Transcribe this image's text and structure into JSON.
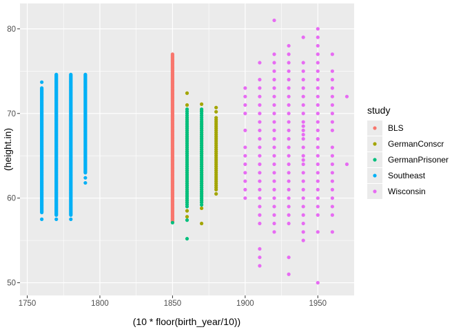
{
  "chart_data": {
    "type": "scatter",
    "xlabel": "(10 * floor(birth_year/10))",
    "ylabel": "(height.in)",
    "xlim": [
      1745,
      1975
    ],
    "ylim": [
      48.5,
      83
    ],
    "x_ticks": [
      1750,
      1800,
      1850,
      1900,
      1950
    ],
    "y_ticks": [
      50,
      60,
      70,
      80
    ],
    "x_tick_labels": [
      "1750",
      "1800",
      "1850",
      "1900",
      "1950"
    ],
    "y_tick_labels": [
      "50",
      "60",
      "70",
      "80"
    ],
    "grid": true,
    "background": "#EBEBEB",
    "legend": {
      "title": "study",
      "position": "right",
      "entries": [
        "BLS",
        "GermanConscr",
        "GermanPrisoner",
        "Southeast",
        "Wisconsin"
      ]
    },
    "series": [
      {
        "name": "BLS",
        "color": "#F8766D",
        "ranges": [
          {
            "x": 1850,
            "min": 57.2,
            "max": 77.0,
            "step": 0.1
          }
        ],
        "points": []
      },
      {
        "name": "GermanConscr",
        "color": "#A3A500",
        "ranges": [
          {
            "x": 1860,
            "min": 59.5,
            "max": 69.5,
            "step": 0.25
          },
          {
            "x": 1870,
            "min": 59.5,
            "max": 69.0,
            "step": 0.25
          },
          {
            "x": 1880,
            "min": 61.0,
            "max": 69.5,
            "step": 0.25
          }
        ],
        "points": [
          {
            "x": 1860,
            "y": 72.4
          },
          {
            "x": 1860,
            "y": 71.0
          },
          {
            "x": 1860,
            "y": 58.5
          },
          {
            "x": 1860,
            "y": 57.8
          },
          {
            "x": 1870,
            "y": 71.1
          },
          {
            "x": 1870,
            "y": 70.3
          },
          {
            "x": 1870,
            "y": 58.8
          },
          {
            "x": 1870,
            "y": 57.0
          },
          {
            "x": 1880,
            "y": 70.7
          },
          {
            "x": 1880,
            "y": 70.2
          },
          {
            "x": 1880,
            "y": 60.5
          }
        ]
      },
      {
        "name": "GermanPrisoner",
        "color": "#00BF7D",
        "ranges": [
          {
            "x": 1860,
            "min": 59.0,
            "max": 70.5,
            "step": 0.25
          },
          {
            "x": 1870,
            "min": 59.5,
            "max": 70.5,
            "step": 0.25
          }
        ],
        "points": [
          {
            "x": 1850,
            "y": 57.1
          },
          {
            "x": 1860,
            "y": 55.2
          },
          {
            "x": 1860,
            "y": 57.4
          },
          {
            "x": 1870,
            "y": 59.2
          }
        ]
      },
      {
        "name": "Southeast",
        "color": "#00B0F6",
        "ranges": [
          {
            "x": 1760,
            "min": 58.3,
            "max": 73.0,
            "step": 0.1
          },
          {
            "x": 1770,
            "min": 58.0,
            "max": 74.6,
            "step": 0.1
          },
          {
            "x": 1780,
            "min": 58.0,
            "max": 74.6,
            "step": 0.1
          },
          {
            "x": 1790,
            "min": 63.0,
            "max": 74.6,
            "step": 0.1
          }
        ],
        "points": [
          {
            "x": 1760,
            "y": 73.7
          },
          {
            "x": 1760,
            "y": 57.5
          },
          {
            "x": 1770,
            "y": 57.5
          },
          {
            "x": 1780,
            "y": 57.5
          },
          {
            "x": 1790,
            "y": 62.4
          },
          {
            "x": 1790,
            "y": 61.8
          }
        ]
      },
      {
        "name": "Wisconsin",
        "color": "#E76BF3",
        "ranges": [],
        "points": [
          {
            "x": 1900,
            "y": 73
          },
          {
            "x": 1900,
            "y": 72
          },
          {
            "x": 1900,
            "y": 71
          },
          {
            "x": 1900,
            "y": 70
          },
          {
            "x": 1900,
            "y": 68
          },
          {
            "x": 1900,
            "y": 66
          },
          {
            "x": 1900,
            "y": 65
          },
          {
            "x": 1900,
            "y": 64
          },
          {
            "x": 1900,
            "y": 63
          },
          {
            "x": 1900,
            "y": 62
          },
          {
            "x": 1900,
            "y": 61
          },
          {
            "x": 1900,
            "y": 60
          },
          {
            "x": 1910,
            "y": 76
          },
          {
            "x": 1910,
            "y": 74
          },
          {
            "x": 1910,
            "y": 73
          },
          {
            "x": 1910,
            "y": 72
          },
          {
            "x": 1910,
            "y": 71
          },
          {
            "x": 1910,
            "y": 70
          },
          {
            "x": 1910,
            "y": 69
          },
          {
            "x": 1910,
            "y": 68
          },
          {
            "x": 1910,
            "y": 67
          },
          {
            "x": 1910,
            "y": 66
          },
          {
            "x": 1910,
            "y": 65
          },
          {
            "x": 1910,
            "y": 64
          },
          {
            "x": 1910,
            "y": 63
          },
          {
            "x": 1910,
            "y": 62
          },
          {
            "x": 1910,
            "y": 61
          },
          {
            "x": 1910,
            "y": 60
          },
          {
            "x": 1910,
            "y": 59
          },
          {
            "x": 1910,
            "y": 58
          },
          {
            "x": 1910,
            "y": 57
          },
          {
            "x": 1910,
            "y": 54
          },
          {
            "x": 1910,
            "y": 53
          },
          {
            "x": 1910,
            "y": 52
          },
          {
            "x": 1920,
            "y": 81
          },
          {
            "x": 1920,
            "y": 77
          },
          {
            "x": 1920,
            "y": 76
          },
          {
            "x": 1920,
            "y": 75
          },
          {
            "x": 1920,
            "y": 74
          },
          {
            "x": 1920,
            "y": 73
          },
          {
            "x": 1920,
            "y": 72
          },
          {
            "x": 1920,
            "y": 71
          },
          {
            "x": 1920,
            "y": 70
          },
          {
            "x": 1920,
            "y": 69
          },
          {
            "x": 1920,
            "y": 68
          },
          {
            "x": 1920,
            "y": 67
          },
          {
            "x": 1920,
            "y": 66
          },
          {
            "x": 1920,
            "y": 65
          },
          {
            "x": 1920,
            "y": 64
          },
          {
            "x": 1920,
            "y": 63
          },
          {
            "x": 1920,
            "y": 62
          },
          {
            "x": 1920,
            "y": 61
          },
          {
            "x": 1920,
            "y": 60
          },
          {
            "x": 1920,
            "y": 59
          },
          {
            "x": 1920,
            "y": 58
          },
          {
            "x": 1920,
            "y": 57
          },
          {
            "x": 1920,
            "y": 56
          },
          {
            "x": 1930,
            "y": 78
          },
          {
            "x": 1930,
            "y": 77
          },
          {
            "x": 1930,
            "y": 76
          },
          {
            "x": 1930,
            "y": 75
          },
          {
            "x": 1930,
            "y": 74
          },
          {
            "x": 1930,
            "y": 73
          },
          {
            "x": 1930,
            "y": 72
          },
          {
            "x": 1930,
            "y": 71
          },
          {
            "x": 1930,
            "y": 70
          },
          {
            "x": 1930,
            "y": 69
          },
          {
            "x": 1930,
            "y": 68
          },
          {
            "x": 1930,
            "y": 67
          },
          {
            "x": 1930,
            "y": 66
          },
          {
            "x": 1930,
            "y": 65
          },
          {
            "x": 1930,
            "y": 64
          },
          {
            "x": 1930,
            "y": 63
          },
          {
            "x": 1930,
            "y": 62
          },
          {
            "x": 1930,
            "y": 61
          },
          {
            "x": 1930,
            "y": 60
          },
          {
            "x": 1930,
            "y": 59
          },
          {
            "x": 1930,
            "y": 58
          },
          {
            "x": 1930,
            "y": 57
          },
          {
            "x": 1930,
            "y": 53
          },
          {
            "x": 1930,
            "y": 51
          },
          {
            "x": 1940,
            "y": 79
          },
          {
            "x": 1940,
            "y": 76
          },
          {
            "x": 1940,
            "y": 75
          },
          {
            "x": 1940,
            "y": 74
          },
          {
            "x": 1940,
            "y": 73
          },
          {
            "x": 1940,
            "y": 72
          },
          {
            "x": 1940,
            "y": 71
          },
          {
            "x": 1940,
            "y": 70
          },
          {
            "x": 1940,
            "y": 69
          },
          {
            "x": 1940,
            "y": 68.5
          },
          {
            "x": 1940,
            "y": 68
          },
          {
            "x": 1940,
            "y": 67.5
          },
          {
            "x": 1940,
            "y": 67
          },
          {
            "x": 1940,
            "y": 66
          },
          {
            "x": 1940,
            "y": 65
          },
          {
            "x": 1940,
            "y": 64.5
          },
          {
            "x": 1940,
            "y": 64
          },
          {
            "x": 1940,
            "y": 63
          },
          {
            "x": 1940,
            "y": 62
          },
          {
            "x": 1940,
            "y": 61
          },
          {
            "x": 1940,
            "y": 60
          },
          {
            "x": 1940,
            "y": 59
          },
          {
            "x": 1940,
            "y": 58
          },
          {
            "x": 1940,
            "y": 57
          },
          {
            "x": 1940,
            "y": 56
          },
          {
            "x": 1940,
            "y": 55
          },
          {
            "x": 1950,
            "y": 80
          },
          {
            "x": 1950,
            "y": 79
          },
          {
            "x": 1950,
            "y": 78
          },
          {
            "x": 1950,
            "y": 77
          },
          {
            "x": 1950,
            "y": 76
          },
          {
            "x": 1950,
            "y": 75
          },
          {
            "x": 1950,
            "y": 74
          },
          {
            "x": 1950,
            "y": 73
          },
          {
            "x": 1950,
            "y": 72
          },
          {
            "x": 1950,
            "y": 71
          },
          {
            "x": 1950,
            "y": 70
          },
          {
            "x": 1950,
            "y": 69
          },
          {
            "x": 1950,
            "y": 68
          },
          {
            "x": 1950,
            "y": 67
          },
          {
            "x": 1950,
            "y": 66
          },
          {
            "x": 1950,
            "y": 65
          },
          {
            "x": 1950,
            "y": 64
          },
          {
            "x": 1950,
            "y": 63
          },
          {
            "x": 1950,
            "y": 62
          },
          {
            "x": 1950,
            "y": 61
          },
          {
            "x": 1950,
            "y": 60
          },
          {
            "x": 1950,
            "y": 59
          },
          {
            "x": 1950,
            "y": 58
          },
          {
            "x": 1950,
            "y": 56
          },
          {
            "x": 1950,
            "y": 50
          },
          {
            "x": 1960,
            "y": 77
          },
          {
            "x": 1960,
            "y": 75
          },
          {
            "x": 1960,
            "y": 74
          },
          {
            "x": 1960,
            "y": 73
          },
          {
            "x": 1960,
            "y": 72
          },
          {
            "x": 1960,
            "y": 71
          },
          {
            "x": 1960,
            "y": 70
          },
          {
            "x": 1960,
            "y": 69
          },
          {
            "x": 1960,
            "y": 68
          },
          {
            "x": 1960,
            "y": 66
          },
          {
            "x": 1960,
            "y": 65
          },
          {
            "x": 1960,
            "y": 64
          },
          {
            "x": 1960,
            "y": 63
          },
          {
            "x": 1960,
            "y": 62
          },
          {
            "x": 1960,
            "y": 61
          },
          {
            "x": 1960,
            "y": 60
          },
          {
            "x": 1960,
            "y": 59
          },
          {
            "x": 1960,
            "y": 58
          },
          {
            "x": 1960,
            "y": 56
          },
          {
            "x": 1970,
            "y": 72
          },
          {
            "x": 1970,
            "y": 64
          }
        ]
      }
    ]
  }
}
